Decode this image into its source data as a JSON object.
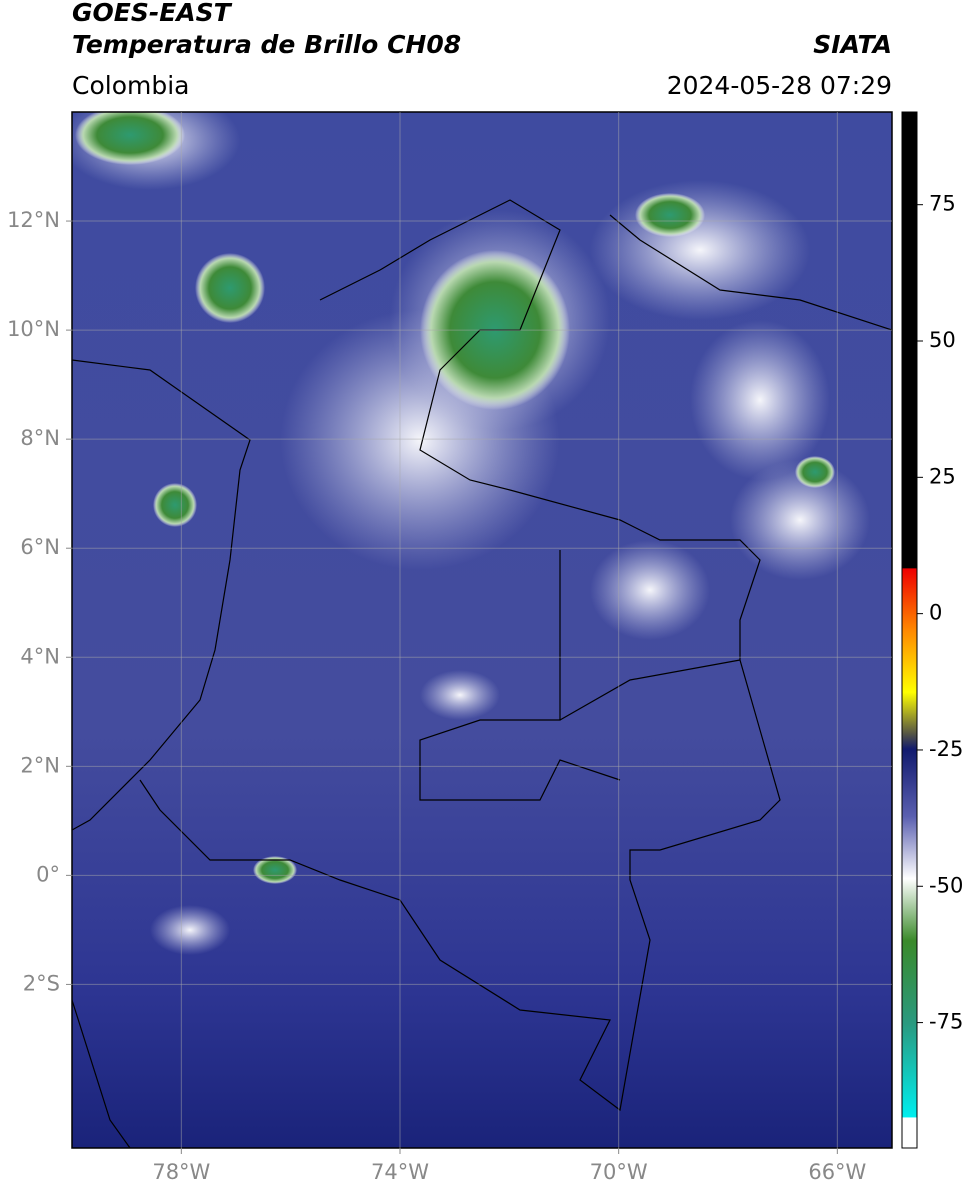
{
  "header": {
    "title": "GOES-EAST",
    "subtitle": "Temperatura de Brillo CH08",
    "source": "SIATA",
    "region": "Colombia",
    "datetime": "2024-05-28 07:29"
  },
  "map": {
    "xlim": [
      -80,
      -65
    ],
    "ylim": [
      -5,
      14
    ],
    "xticks": [
      {
        "value": -78,
        "label": "78°W"
      },
      {
        "value": -74,
        "label": "74°W"
      },
      {
        "value": -70,
        "label": "70°W"
      },
      {
        "value": -66,
        "label": "66°W"
      }
    ],
    "yticks": [
      {
        "value": 12,
        "label": "12°N"
      },
      {
        "value": 10,
        "label": "10°N"
      },
      {
        "value": 8,
        "label": "8°N"
      },
      {
        "value": 6,
        "label": "6°N"
      },
      {
        "value": 4,
        "label": "4°N"
      },
      {
        "value": 2,
        "label": "2°N"
      },
      {
        "value": 0,
        "label": "0°"
      },
      {
        "value": -2,
        "label": "2°S"
      }
    ],
    "grid": true
  },
  "colorbar": {
    "ylim": [
      -98,
      92
    ],
    "yticks": [
      75,
      50,
      25,
      0,
      -25,
      -50,
      -75
    ]
  }
}
